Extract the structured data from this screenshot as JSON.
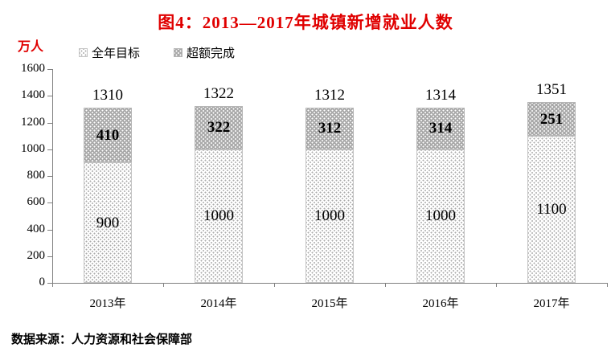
{
  "header": {
    "title": "图4：2013—2017年城镇新增就业人数",
    "unit_label": "万人"
  },
  "legend": {
    "target_label": "全年目标",
    "excess_label": "超额完成"
  },
  "footer": {
    "source": "数据来源：人力资源和社会保障部"
  },
  "colors": {
    "title_red": "#e00000",
    "excess_fill": "#a9a9a9",
    "target_dot": "#ababab",
    "axis_gray": "#808080"
  },
  "chart_data": {
    "type": "bar",
    "stacked": true,
    "title": "图4：2013—2017年城镇新增就业人数",
    "ylabel": "万人",
    "xlabel": "",
    "categories": [
      "2013年",
      "2014年",
      "2015年",
      "2016年",
      "2017年"
    ],
    "series": [
      {
        "name": "全年目标",
        "values": [
          900,
          1000,
          1000,
          1000,
          1100
        ]
      },
      {
        "name": "超额完成",
        "values": [
          410,
          322,
          312,
          314,
          251
        ]
      }
    ],
    "totals": [
      1310,
      1322,
      1312,
      1314,
      1351
    ],
    "ylim": [
      0,
      1600
    ],
    "yticks": [
      0,
      200,
      400,
      600,
      800,
      1000,
      1200,
      1400,
      1600
    ],
    "grid": false,
    "legend_position": "top-left"
  }
}
